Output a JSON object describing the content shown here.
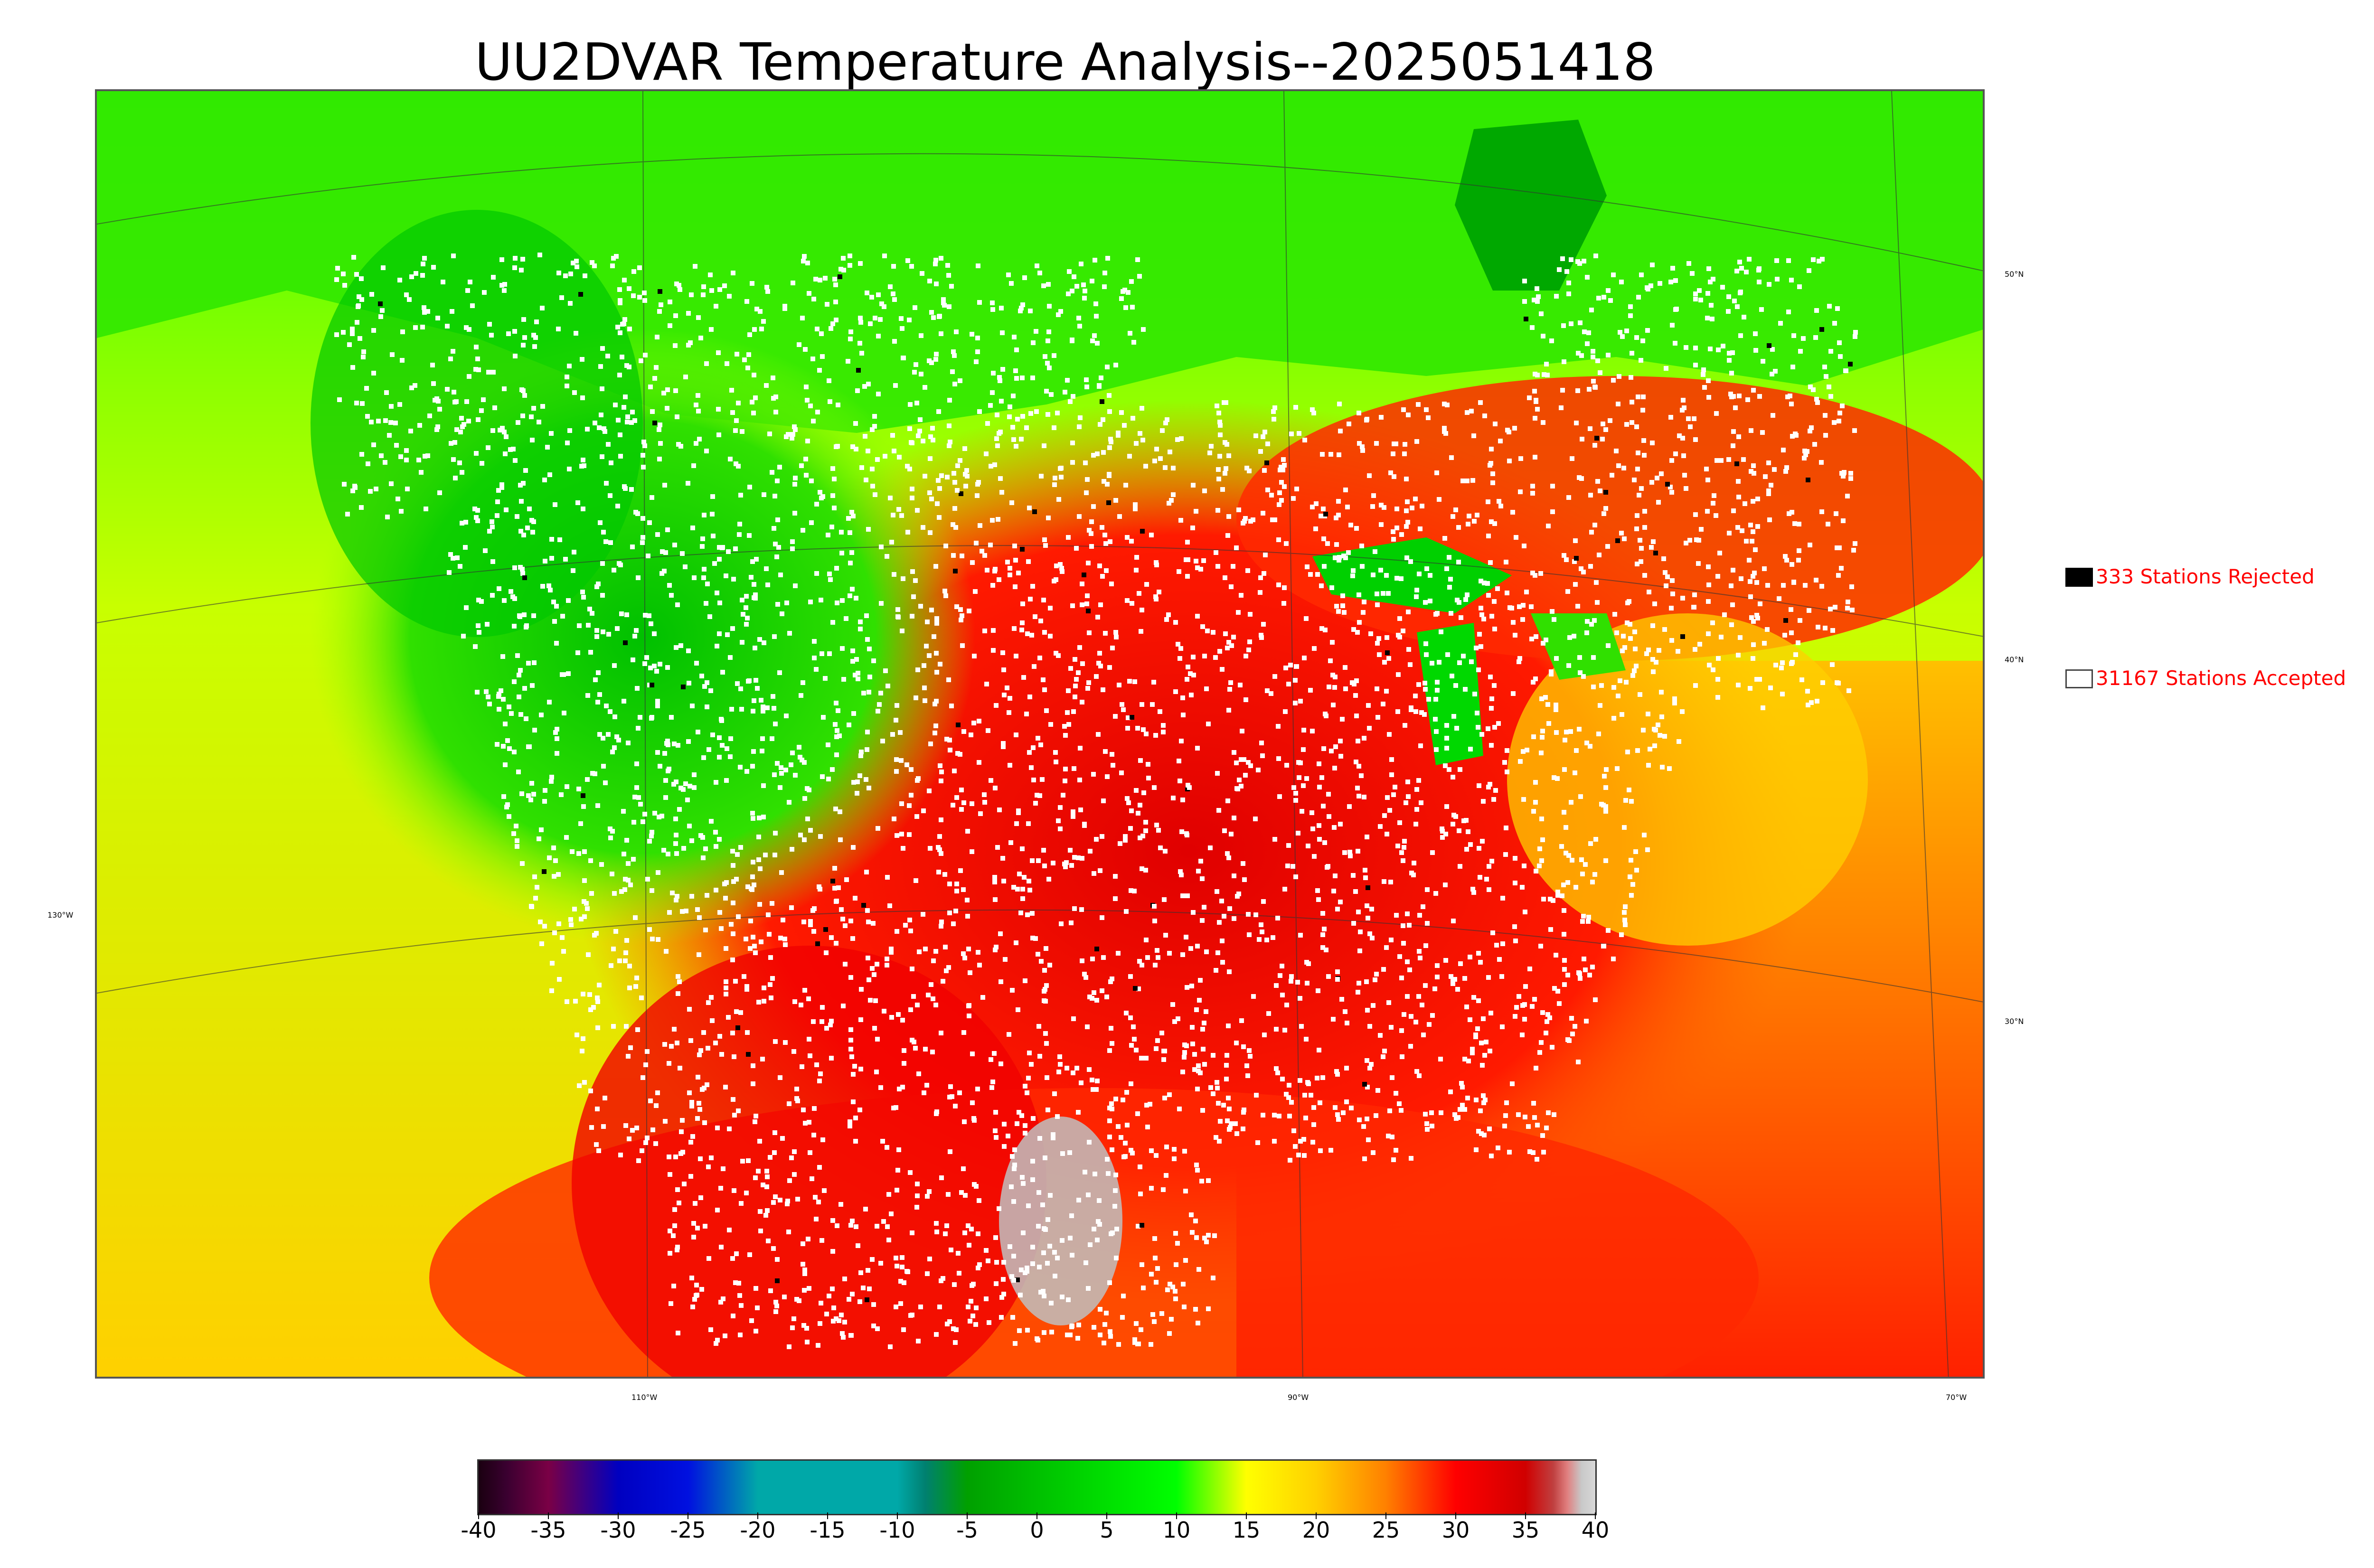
{
  "title": "UU2DVAR Temperature Analysis--2025051418",
  "map": {
    "lat_labels": [
      "50°N",
      "40°N",
      "30°N"
    ],
    "lon_labels": [
      "130°W",
      "110°W",
      "90°W",
      "70°W"
    ]
  },
  "legend": {
    "rejected": {
      "count_text": "333 Stations Rejected",
      "swatch_color": "#000000"
    },
    "accepted": {
      "count_text": "31167 Stations Accepted",
      "swatch_color": "#ffffff"
    }
  },
  "colorbar": {
    "ticks": [
      "-40",
      "-35",
      "-30",
      "-25",
      "-20",
      "-15",
      "-10",
      "-5",
      "0",
      "5",
      "10",
      "15",
      "20",
      "25",
      "30",
      "35",
      "40"
    ],
    "range": [
      -40,
      40
    ],
    "colors": {
      "v_-40": "#1a0010",
      "v_-38": "#3a0030",
      "v_-35": "#7a0045",
      "v_-30": "#0000c0",
      "v_-25": "#0010e0",
      "v_-20": "#00a8a8",
      "v_-10": "#00a8a8",
      "v_-8": "#008070",
      "v_-5": "#00a000",
      "v_0": "#00c000",
      "v_10": "#00ff00",
      "v_15": "#ffff00",
      "v_20": "#ffd000",
      "v_25": "#ff8000",
      "v_30": "#ff0000",
      "v_35": "#d00000",
      "v_37": "#c04040",
      "v_38": "#e08080",
      "v_39": "#c8c8c8",
      "v_40": "#d8d8d8"
    }
  }
}
